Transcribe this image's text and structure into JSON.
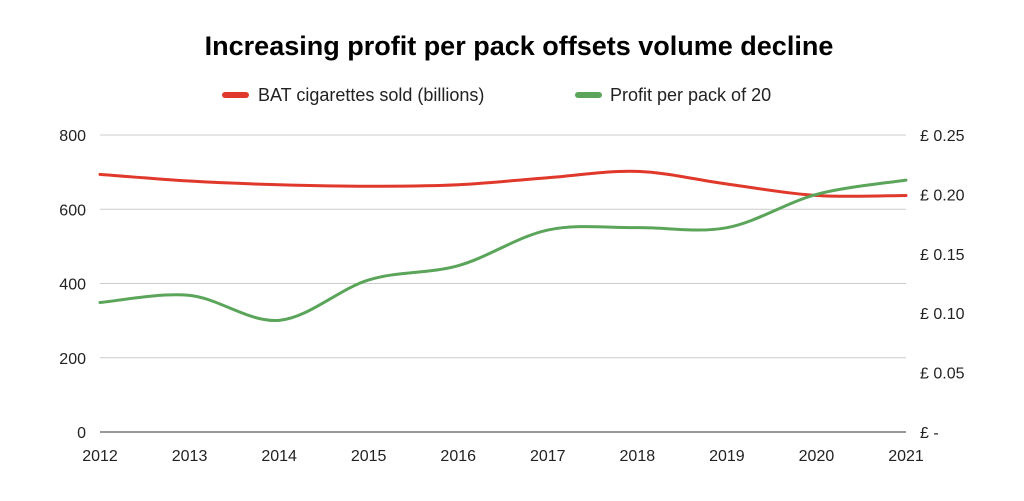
{
  "chart_data": {
    "type": "line",
    "title": "Increasing profit per pack offsets volume decline",
    "legend_position": "top",
    "grid": true,
    "smooth": true,
    "x": [
      "2012",
      "2013",
      "2014",
      "2015",
      "2016",
      "2017",
      "2018",
      "2019",
      "2020",
      "2021"
    ],
    "xlabel": "",
    "y_left": {
      "label": "",
      "range": [
        0,
        800
      ],
      "ticks": [
        0,
        200,
        400,
        600,
        800
      ],
      "tick_labels": [
        "0",
        "200",
        "400",
        "600",
        "800"
      ]
    },
    "y_right": {
      "label": "",
      "range": [
        0,
        0.25
      ],
      "ticks": [
        0,
        0.05,
        0.1,
        0.15,
        0.2,
        0.25
      ],
      "tick_labels": [
        "£ -",
        "£ 0.05",
        "£ 0.10",
        "£ 0.15",
        "£ 0.20",
        "£ 0.25"
      ]
    },
    "series": [
      {
        "name": "BAT cigarettes sold (billions)",
        "axis": "left",
        "color": "#e0392b",
        "values": [
          694,
          676,
          666,
          662,
          666,
          685,
          702,
          668,
          637,
          637
        ]
      },
      {
        "name": "Profit per pack of 20",
        "axis": "right",
        "color": "#5ba55b",
        "values": [
          0.109,
          0.115,
          0.094,
          0.128,
          0.14,
          0.17,
          0.172,
          0.172,
          0.2,
          0.212
        ]
      }
    ]
  }
}
